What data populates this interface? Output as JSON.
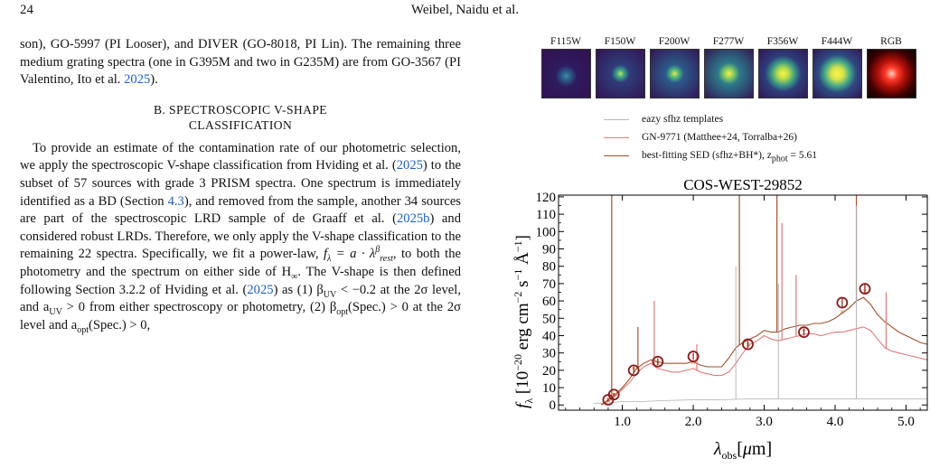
{
  "header": {
    "page_number": "24",
    "authors": "Weibel, Naidu et al."
  },
  "left_column": {
    "para1": {
      "a": "son), GO-5997 (PI Looser), and DIVER (GO-8018, PI Lin). The remaining three medium grating spectra (one in G395M and two in G235M) are from GO-3567 (PI Valentino, Ito et al. ",
      "cite_year": "2025",
      "b": ")."
    },
    "section_heading_line1": "B. SPECTROSCOPIC V-SHAPE",
    "section_heading_line2": "CLASSIFICATION",
    "para2": {
      "a": "To provide an estimate of the contamination rate of our photometric selection, we apply the spectroscopic V-shape classification from Hviding et al. (",
      "cite1": "2025",
      "b": ") to the subset of 57 sources with grade 3 PRISM spectra. One spectrum is immediately identified as a BD (Section ",
      "cite2": "4.3",
      "c": "), and removed from the sample, another 34 sources are part of the spectroscopic LRD sample of de Graaff et al. (",
      "cite3": "2025b",
      "d": ") and considered robust LRDs. Therefore, we only apply the V-shape classification to the remaining 22 spectra. Specifically, we fit a power-law, ",
      "e": ", to both the photometry and the spectrum on either side of H",
      "f": ". The V-shape is then defined following Section 3.2.2 of Hviding et al. (",
      "cite4": "2025",
      "g": ") as (1) β",
      "h": " < −0.2 at the 2σ level, and a",
      "i": " > 0 from either spectroscopy or photometry, (2) β",
      "j": "(Spec.) > 0 at the 2σ level and a",
      "k": "(Spec.) > 0,"
    }
  },
  "thumbnails": {
    "labels": [
      "F115W",
      "F150W",
      "F200W",
      "F277W",
      "F356W",
      "F444W",
      "RGB"
    ]
  },
  "legend": {
    "items": [
      {
        "label": "eazy sfhz templates",
        "color": "#b8b8b8"
      },
      {
        "label": "GN-9771 (Matthee+24, Torralba+26)",
        "color": "#e07a7a"
      },
      {
        "label": "best-fitting SED (sfhz+BH*), z",
        "color": "#a0522d"
      }
    ],
    "zphot_value": "5.61"
  },
  "chart_data": {
    "type": "line",
    "title": "COS-WEST-29852",
    "xlabel": "λobs[μm]",
    "ylabel": "fλ [10−20 erg cm−2 s−1 Å−1]",
    "xlim": [
      0.1,
      5.3
    ],
    "ylim": [
      -3,
      121
    ],
    "x_ticks": [
      "1.0",
      "2.0",
      "3.0",
      "4.0",
      "5.0"
    ],
    "y_ticks": [
      "0",
      "10",
      "20",
      "30",
      "40",
      "50",
      "60",
      "70",
      "80",
      "90",
      "100",
      "110",
      "120"
    ],
    "series": [
      {
        "role": "template",
        "color": "#b0b0b0",
        "x": [
          0.6,
          0.8,
          1.0,
          1.3,
          1.6,
          2.0,
          2.4,
          2.8,
          3.2,
          3.6,
          4.0,
          4.4,
          4.8,
          5.3
        ],
        "y": [
          1,
          1,
          2,
          2,
          2.5,
          3,
          3,
          3.5,
          3.5,
          3.5,
          3.5,
          3.5,
          3.5,
          3.5
        ]
      },
      {
        "role": "comparison",
        "color": "#e07a7a",
        "x": [
          0.7,
          0.8,
          0.9,
          1.0,
          1.1,
          1.2,
          1.3,
          1.4,
          1.5,
          1.6,
          1.7,
          1.8,
          1.9,
          2.0,
          2.1,
          2.2,
          2.3,
          2.4,
          2.5,
          2.6,
          2.7,
          2.8,
          2.9,
          3.0,
          3.1,
          3.2,
          3.3,
          3.4,
          3.5,
          3.6,
          3.7,
          3.8,
          3.9,
          4.0,
          4.1,
          4.2,
          4.3,
          4.4,
          4.5,
          4.6,
          4.7,
          4.8,
          4.9,
          5.0,
          5.1,
          5.2,
          5.3
        ],
        "y": [
          0,
          2,
          5,
          9,
          13,
          18,
          22,
          24,
          21,
          20,
          19,
          19,
          20,
          21,
          19,
          18,
          17,
          17,
          19,
          24,
          30,
          35,
          37,
          40,
          38,
          37,
          38,
          39,
          40,
          41,
          41,
          40,
          41,
          42,
          42,
          43,
          44,
          45,
          43,
          38,
          33,
          31,
          30,
          29,
          28,
          27,
          26
        ]
      },
      {
        "role": "best-fit",
        "color": "#a0522d",
        "x": [
          0.7,
          0.8,
          0.9,
          1.0,
          1.1,
          1.2,
          1.3,
          1.4,
          1.5,
          1.6,
          1.7,
          1.8,
          1.9,
          2.0,
          2.1,
          2.2,
          2.3,
          2.4,
          2.5,
          2.6,
          2.7,
          2.8,
          2.9,
          3.0,
          3.1,
          3.2,
          3.3,
          3.4,
          3.5,
          3.6,
          3.7,
          3.8,
          3.9,
          4.0,
          4.1,
          4.2,
          4.3,
          4.4,
          4.5,
          4.6,
          4.7,
          4.8,
          4.9,
          5.0,
          5.1,
          5.2,
          5.3
        ],
        "y": [
          0,
          3,
          6,
          10,
          15,
          21,
          24,
          26,
          25,
          24,
          24,
          24,
          24,
          25,
          23,
          22,
          22,
          22,
          27,
          33,
          36,
          38,
          40,
          43,
          42,
          42,
          44,
          45,
          46,
          46,
          47,
          47,
          48,
          50,
          53,
          56,
          60,
          62,
          58,
          52,
          48,
          45,
          42,
          40,
          38,
          36,
          35
        ]
      }
    ],
    "emission_lines": [
      {
        "x": 0.85,
        "top": 121,
        "series": "best-fit"
      },
      {
        "x": 1.22,
        "top": 45,
        "series": "best-fit"
      },
      {
        "x": 1.45,
        "top": 60,
        "series": "comparison"
      },
      {
        "x": 2.05,
        "top": 35,
        "series": "comparison"
      },
      {
        "x": 2.65,
        "top": 121,
        "series": "best-fit"
      },
      {
        "x": 3.18,
        "top": 121,
        "series": "best-fit"
      },
      {
        "x": 3.25,
        "top": 105,
        "series": "comparison"
      },
      {
        "x": 3.45,
        "top": 75,
        "series": "comparison"
      },
      {
        "x": 4.3,
        "top": 121,
        "series": "best-fit"
      },
      {
        "x": 4.72,
        "top": 65,
        "series": "comparison"
      },
      {
        "x": 2.6,
        "top": 80,
        "series": "template"
      },
      {
        "x": 3.2,
        "top": 70,
        "series": "template"
      },
      {
        "x": 4.3,
        "top": 115,
        "series": "template"
      }
    ],
    "photometry": {
      "x": [
        0.8,
        0.88,
        1.16,
        1.5,
        2.0,
        2.77,
        3.56,
        4.1,
        4.42
      ],
      "y": [
        3,
        6,
        20,
        25,
        28,
        35,
        42,
        59,
        67
      ],
      "err": [
        1,
        1,
        2,
        2,
        2,
        2,
        2,
        3,
        3
      ],
      "model": [
        3,
        6,
        22,
        24,
        25,
        35,
        44,
        54,
        66
      ]
    }
  }
}
